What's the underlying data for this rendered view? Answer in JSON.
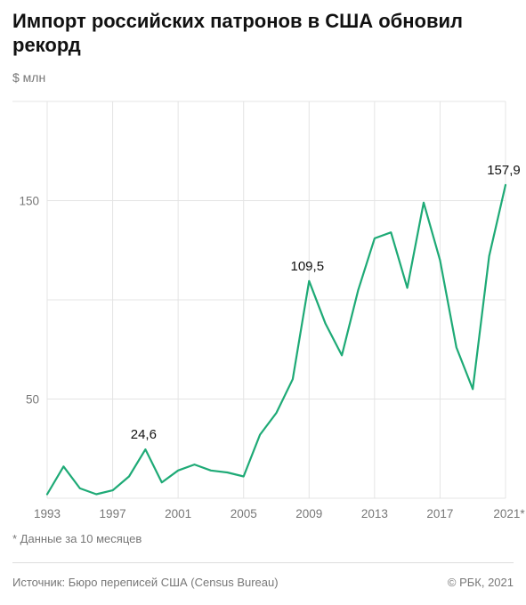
{
  "title": "Импорт российских патронов в США обновил рекорд",
  "unit_label": "$ млн",
  "footnote": "* Данные за 10 месяцев",
  "source": "Источник: Бюро переписей США (Census Bureau)",
  "copyright": "© РБК, 2021",
  "colors": {
    "line": "#1eaa76",
    "grid": "#e4e4e4",
    "axis_text": "#777777"
  },
  "chart_data": {
    "type": "line",
    "title": "Импорт российских патронов в США обновил рекорд",
    "ylabel": "$ млн",
    "x": [
      1993,
      1994,
      1995,
      1996,
      1997,
      1998,
      1999,
      2000,
      2001,
      2002,
      2003,
      2004,
      2005,
      2006,
      2007,
      2008,
      2009,
      2010,
      2011,
      2012,
      2013,
      2014,
      2015,
      2016,
      2017,
      2018,
      2019,
      2020,
      2021
    ],
    "values": [
      2,
      16,
      5,
      2,
      4,
      11,
      24.6,
      8,
      14,
      17,
      14,
      13,
      11,
      32,
      43,
      60,
      109.5,
      88,
      72,
      105,
      131,
      134,
      106,
      149,
      120,
      76,
      55,
      122,
      157.9
    ],
    "ylim": [
      0,
      200
    ],
    "xlim": [
      1993,
      2021
    ],
    "y_ticks": [
      50,
      150
    ],
    "x_ticks": [
      {
        "value": 1993,
        "label": "1993"
      },
      {
        "value": 1997,
        "label": "1997"
      },
      {
        "value": 2001,
        "label": "2001"
      },
      {
        "value": 2005,
        "label": "2005"
      },
      {
        "value": 2009,
        "label": "2009"
      },
      {
        "value": 2013,
        "label": "2013"
      },
      {
        "value": 2017,
        "label": "2017"
      },
      {
        "value": 2021,
        "label": "2021*"
      }
    ],
    "annotations": [
      {
        "x": 1999,
        "y": 24.6,
        "text": "24,6"
      },
      {
        "x": 2009,
        "y": 109.5,
        "text": "109,5"
      },
      {
        "x": 2021,
        "y": 157.9,
        "text": "157,9"
      }
    ],
    "grid": true,
    "legend": "none"
  }
}
